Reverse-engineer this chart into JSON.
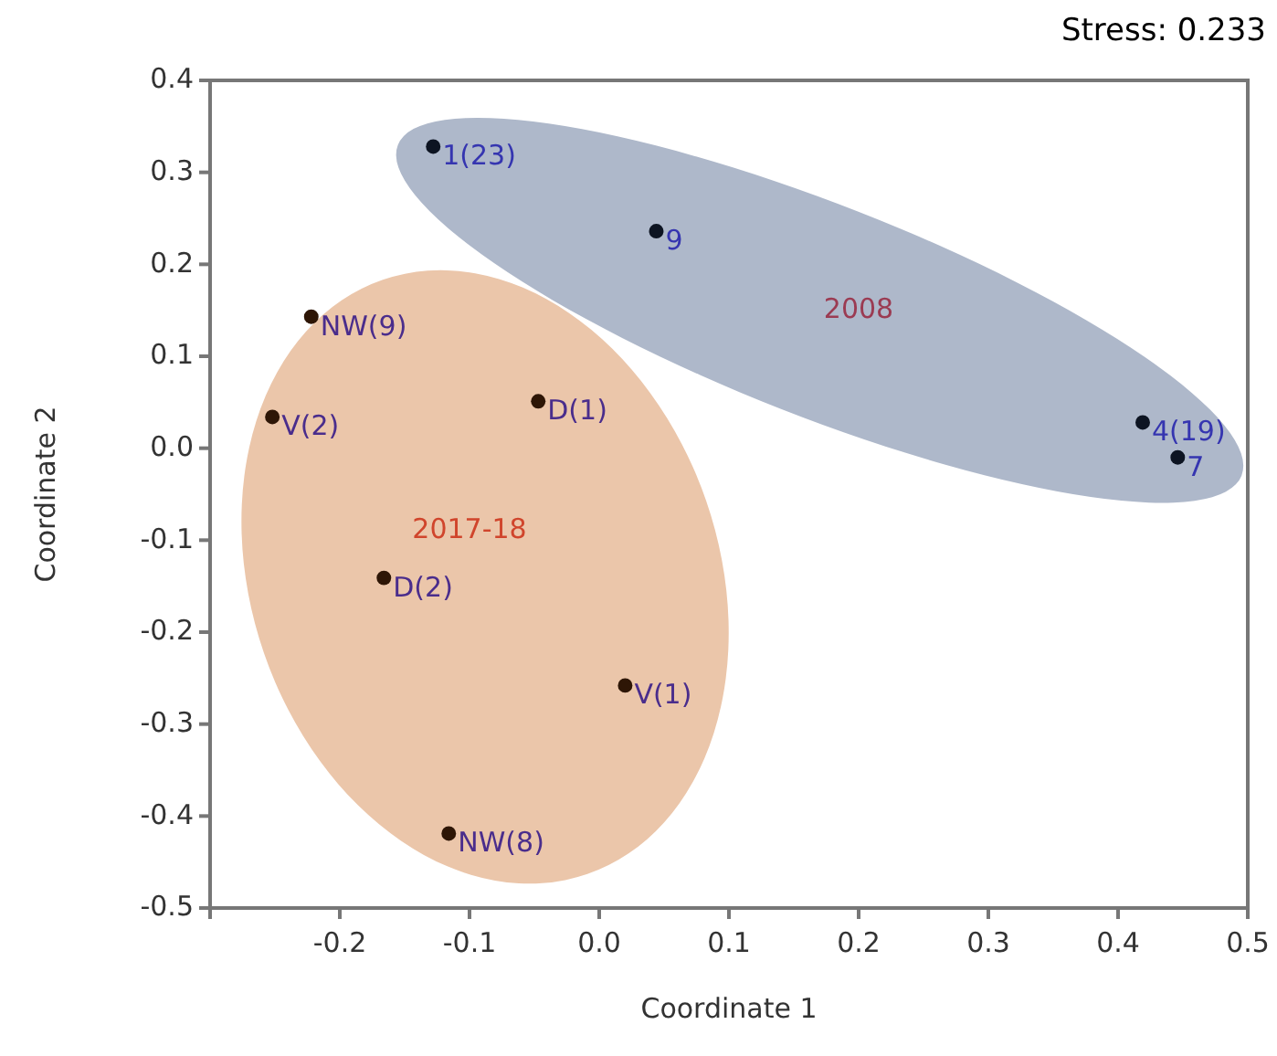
{
  "chart_data": {
    "type": "scatter",
    "xlabel": "Coordinate 1",
    "ylabel": "Coordinate 2",
    "xlim": [
      -0.3,
      0.5
    ],
    "xticks": [
      {
        "value": -0.3,
        "label": null
      },
      -0.2,
      -0.1,
      {
        "value": 0,
        "label": "0.0"
      },
      0.1,
      0.2,
      0.3,
      0.4,
      0.5
    ],
    "ylim": [
      -0.5,
      0.4
    ],
    "yticks": [
      -0.5,
      -0.4,
      -0.3,
      -0.2,
      -0.1,
      {
        "value": 0,
        "label": "0.0"
      },
      0.1,
      0.2,
      0.3,
      0.4
    ],
    "grid": false,
    "legend": false,
    "marker": "circle",
    "series": [
      {
        "color": "#0d1422",
        "x": [
          -0.128,
          0.044,
          0.419,
          0.446
        ],
        "values": [
          0.328,
          0.236,
          0.028,
          -0.01
        ]
      },
      {
        "color": "#2e1606",
        "x": [
          -0.222,
          -0.252,
          -0.047,
          -0.166,
          0.02,
          -0.116
        ],
        "values": [
          0.143,
          0.034,
          0.051,
          -0.141,
          -0.258,
          -0.419
        ]
      }
    ],
    "annotations": [
      "Stress: 0.233",
      "2008",
      "2017-18",
      {
        "text": "1(23)",
        "x": -0.128,
        "y": 0.328
      },
      {
        "text": "9",
        "x": 0.044,
        "y": 0.236
      },
      {
        "text": "4(19)",
        "x": 0.419,
        "y": 0.028
      },
      {
        "text": "7",
        "x": 0.446,
        "y": -0.01
      },
      {
        "text": "NW(9)",
        "x": -0.222,
        "y": 0.143
      },
      {
        "text": "V(2)",
        "x": -0.252,
        "y": 0.034
      },
      {
        "text": "D(1)",
        "x": -0.047,
        "y": 0.051
      },
      {
        "text": "D(2)",
        "x": -0.166,
        "y": -0.141
      },
      {
        "text": "V(1)",
        "x": 0.02,
        "y": -0.258
      },
      {
        "text": "NW(8)",
        "x": -0.116,
        "y": -0.419
      }
    ]
  }
}
